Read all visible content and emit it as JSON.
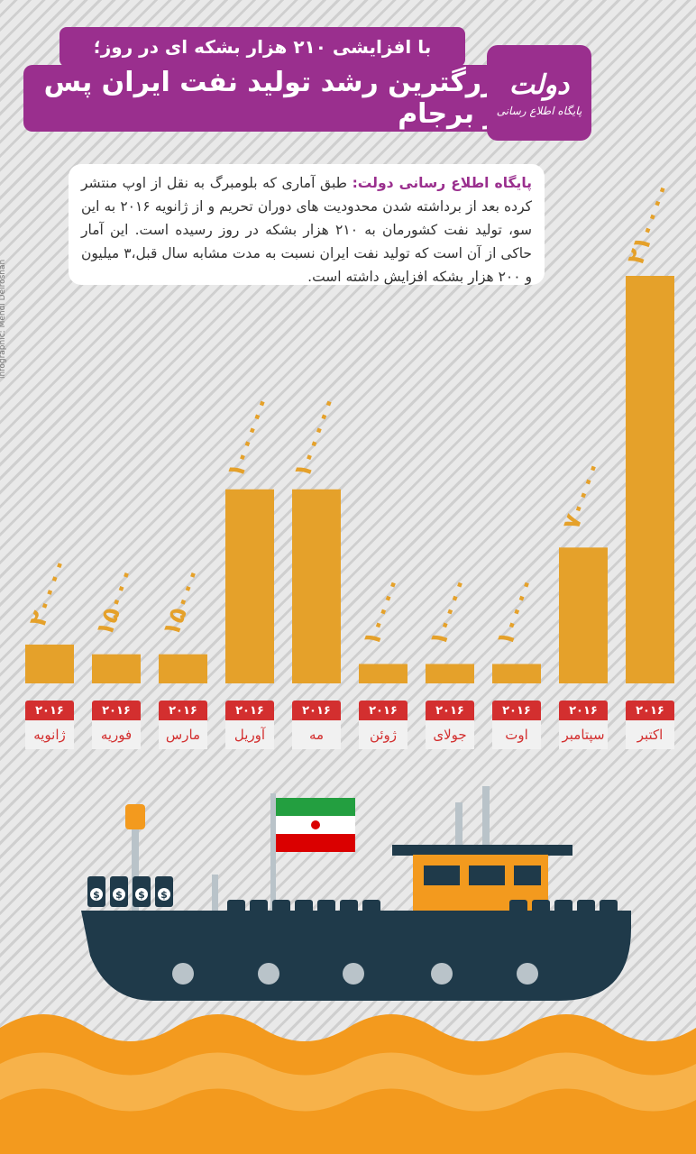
{
  "header": {
    "subtitle": "با افزایشی ۲۱۰ هزار بشکه ای در روز؛",
    "title": "بزرگترین رشد تولید نفت ایران پس از برجام"
  },
  "logo": {
    "main": "دولت",
    "sub": "پایگاه اطلاع رسانی"
  },
  "description": {
    "lead": "پایگاه اطلاع رسانی دولت:",
    "body": "طبق آماری که بلومبرگ به نقل از اوپ منتشر کرده بعد از برداشته شدن محدودیت های دوران تحریم و از ژانویه ۲۰۱۶ به این سو، تولید نفت کشورمان به ۲۱۰ هزار بشکه در روز رسیده است. این آمار حاکی از آن است که تولید نفت ایران نسبت به مدت مشابه سال قبل،۳ میلیون و ۲۰۰ هزار بشکه افزایش داشته است."
  },
  "credit": "infographic: Mehdi Delroshan",
  "colors": {
    "bar": "#e5a12a",
    "header": "#9a2f8e",
    "chip": "#d32f2f",
    "sea": "#f39a1e",
    "hull": "#1f3a4a"
  },
  "chart_data": {
    "type": "bar",
    "year_label": "۲۰۱۶",
    "categories": [
      "ژانویه",
      "فوریه",
      "مارس",
      "آوریل",
      "مه",
      "ژوئن",
      "جولای",
      "اوت",
      "سپتامبر",
      "اکتبر"
    ],
    "values": [
      20000,
      15000,
      15000,
      100000,
      100000,
      10000,
      10000,
      10000,
      70000,
      210000
    ],
    "value_labels": [
      "۲۰۰۰۰",
      "۱۵۰۰۰",
      "۱۵۰۰۰",
      "۱۰۰۰۰۰",
      "۱۰۰۰۰۰",
      "۱۰۰۰۰",
      "۱۰۰۰۰",
      "۱۰۰۰۰",
      "۷۰۰۰۰",
      "۲۱۰۰۰۰"
    ],
    "ylim": [
      0,
      210000
    ]
  },
  "ship": {
    "barrel_symbol": "$"
  }
}
